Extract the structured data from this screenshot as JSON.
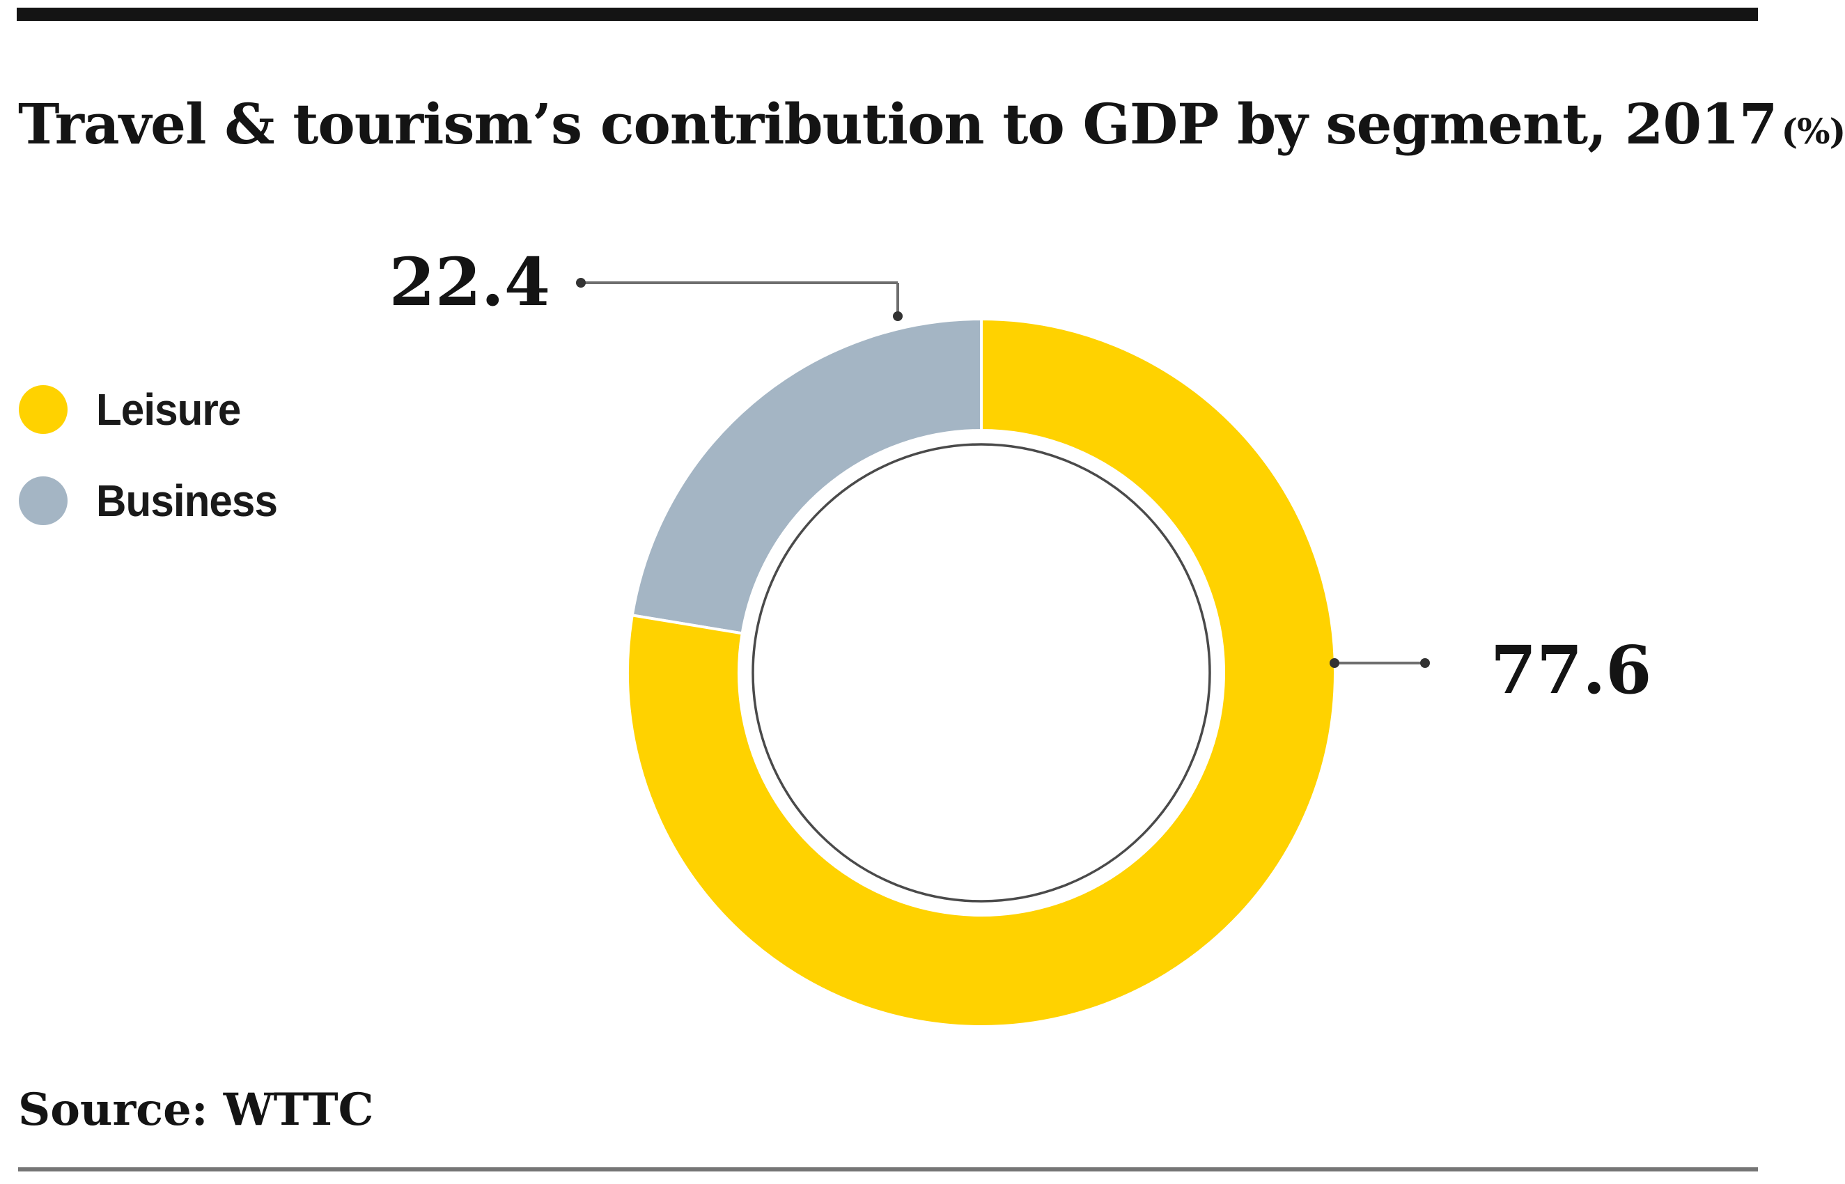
{
  "title": {
    "main": "Travel & tourism’s contribution to GDP by segment, 2017",
    "unit": "(%)"
  },
  "legend": [
    {
      "label": "Leisure",
      "color": "#FFD200"
    },
    {
      "label": "Business",
      "color": "#A4B5C4"
    }
  ],
  "chart_data": {
    "type": "pie",
    "subtype": "donut",
    "title": "Travel & tourism's contribution to GDP by segment, 2017 (%)",
    "categories": [
      "Leisure",
      "Business"
    ],
    "values": [
      77.6,
      22.4
    ],
    "labels": [
      "77.6",
      "22.4"
    ],
    "colors": [
      "#FFD200",
      "#A4B5C4"
    ],
    "unit": "%",
    "start_angle_deg": 0,
    "direction": "clockwise",
    "legend_position": "left",
    "source": "WTTC"
  },
  "source": {
    "label": "Source: WTTC"
  },
  "style_colors": {
    "leisure": "#FFD200",
    "business": "#A4B5C4",
    "text": "#141414",
    "leader_line": "#6e6e6e",
    "leader_dot": "#333333",
    "inner_circle_stroke": "#4a4a4a",
    "top_rule": "#141414",
    "bottom_rule": "#757575"
  }
}
